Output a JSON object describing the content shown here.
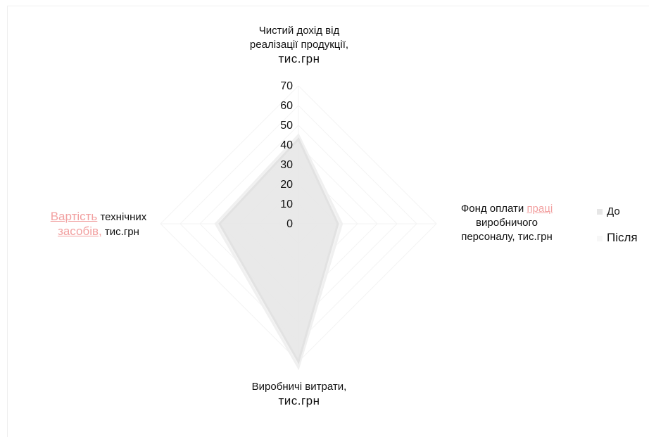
{
  "chart_data": {
    "type": "radar",
    "title": "",
    "axes": [
      {
        "key": "income",
        "label_line1": "Чистий дохід від",
        "label_line2": "реалізації продукції,",
        "label_unit": "тис.грн"
      },
      {
        "key": "payroll",
        "label_line1": "Фонд оплати",
        "label_err": "праці",
        "label_line2": "виробничого",
        "label_line3": "персоналу, тис.грн"
      },
      {
        "key": "costs",
        "label_line1": "Виробничі витрати,",
        "label_unit": "тис.грн"
      },
      {
        "key": "equipment",
        "label_err1": "Вартість",
        "label_line1": " технічних",
        "label_err2": "засобів,",
        "label_line2": " тис.грн"
      }
    ],
    "rlim": [
      0,
      70
    ],
    "ticks": [
      "0",
      "10",
      "20",
      "30",
      "40",
      "50",
      "60",
      "70"
    ],
    "series": [
      {
        "name": "До",
        "values": [
          43,
          20,
          70,
          40
        ],
        "color": "#e6e6e6"
      },
      {
        "name": "Після",
        "values": [
          45,
          22,
          73,
          42
        ],
        "color": "#f2f2f2"
      }
    ],
    "grid": true,
    "legend_position": "right"
  }
}
